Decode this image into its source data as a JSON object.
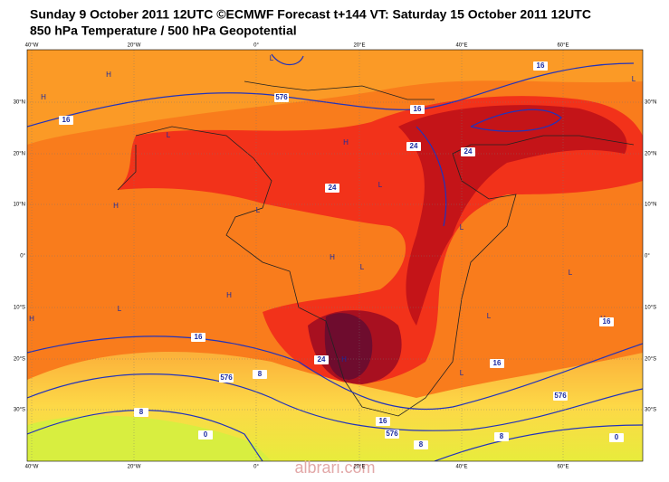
{
  "header": {
    "title_line1": "Sunday 9 October 2011 12UTC ©ECMWF Forecast t+144 VT: Saturday 15 October 2011 12UTC",
    "title_line2": "850 hPa Temperature / 500 hPa Geopotential"
  },
  "map": {
    "lon_labels": [
      "40°W",
      "20°W",
      "0°",
      "20°E",
      "40°E",
      "60°E"
    ],
    "lat_labels": [
      "30°N",
      "20°N",
      "10°N",
      "0°",
      "10°S",
      "20°S",
      "30°S"
    ],
    "pressure_marks": [
      "H",
      "H",
      "L",
      "L",
      "L",
      "H",
      "L",
      "H",
      "L",
      "H",
      "L",
      "H",
      "L",
      "H",
      "L",
      "L",
      "H",
      "L",
      "L",
      "H"
    ],
    "contour_labels": [
      "16",
      "16",
      "16",
      "16",
      "16",
      "16",
      "16",
      "24",
      "24",
      "24",
      "24",
      "576",
      "576",
      "576",
      "576",
      "8",
      "8",
      "8",
      "8",
      "0",
      "0"
    ]
  },
  "watermark": "albrari.com"
}
